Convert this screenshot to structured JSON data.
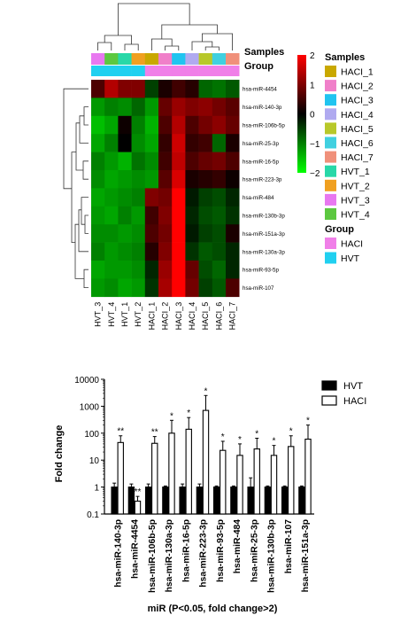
{
  "chart_data": [
    {
      "type": "heatmap",
      "row_labels": [
        "hsa-miR-4454",
        "hsa-miR-140-3p",
        "hsa-miR-106b-5p",
        "hsa-miR-25-3p",
        "hsa-miR-16-5p",
        "hsa-miR-223-3p",
        "hsa-miR-484",
        "hsa-miR-130b-3p",
        "hsa-miR-151a-3p",
        "hsa-miR-130a-3p",
        "hsa-miR-93-5p",
        "hsa-miR-107"
      ],
      "col_labels": [
        "HVT_3",
        "HVT_4",
        "HVT_1",
        "HVT_2",
        "HACI_1",
        "HACI_2",
        "HACI_3",
        "HACI_4",
        "HACI_5",
        "HACI_6",
        "HACI_7"
      ],
      "col_group": [
        "HVT",
        "HVT",
        "HVT",
        "HVT",
        "HACI",
        "HACI",
        "HACI",
        "HACI",
        "HACI",
        "HACI",
        "HACI"
      ],
      "values": [
        [
          0.6,
          1.4,
          1.0,
          1.0,
          -0.5,
          0.2,
          0.5,
          0.3,
          -0.8,
          -0.9,
          -0.7
        ],
        [
          -1.2,
          -1.0,
          -1.1,
          -0.8,
          -1.2,
          0.8,
          1.2,
          1.0,
          1.1,
          0.9,
          0.7
        ],
        [
          -1.5,
          -1.3,
          0.1,
          -1.0,
          -1.4,
          0.6,
          1.4,
          0.6,
          0.9,
          1.1,
          0.8
        ],
        [
          -1.3,
          -1.0,
          0.0,
          -1.1,
          -1.3,
          0.4,
          1.6,
          0.4,
          0.5,
          -0.8,
          0.2
        ],
        [
          -1.0,
          -1.2,
          -1.4,
          -0.9,
          -1.1,
          0.5,
          1.5,
          0.6,
          0.8,
          0.9,
          0.6
        ],
        [
          -1.1,
          -1.3,
          -1.2,
          -1.1,
          -1.2,
          0.7,
          1.7,
          0.2,
          0.3,
          0.4,
          0.1
        ],
        [
          -1.3,
          -1.2,
          -1.1,
          -1.0,
          1.0,
          0.9,
          2.0,
          -0.2,
          -0.5,
          -0.6,
          -0.3
        ],
        [
          -1.2,
          -1.3,
          -1.0,
          -1.2,
          0.5,
          1.0,
          2.0,
          -0.3,
          -0.6,
          -0.7,
          -0.4
        ],
        [
          -1.1,
          -1.1,
          -1.2,
          -1.1,
          0.6,
          0.9,
          2.0,
          -0.2,
          -0.5,
          -0.6,
          0.2
        ],
        [
          -1.0,
          -1.2,
          -1.1,
          -1.0,
          0.3,
          1.0,
          2.0,
          -0.4,
          -0.7,
          -0.6,
          -0.3
        ],
        [
          -1.3,
          -1.2,
          -1.2,
          -1.1,
          -0.3,
          1.2,
          2.0,
          0.8,
          -0.6,
          -0.8,
          -0.3
        ],
        [
          -1.2,
          -1.1,
          -1.3,
          -1.2,
          -0.4,
          1.3,
          2.0,
          0.9,
          -0.5,
          -0.7,
          0.6
        ]
      ],
      "color_scale": {
        "min": -2,
        "max": 2,
        "ticks": [
          "2",
          "1",
          "0",
          "−1",
          "−2"
        ],
        "low_color": "#00ff00",
        "mid_color": "#000000",
        "high_color": "#ff0000"
      },
      "annotation_titles": {
        "samples": "Samples",
        "group": "Group"
      },
      "legend_samples": [
        {
          "label": "HACI_1",
          "color": "#c9a800"
        },
        {
          "label": "HACI_2",
          "color": "#f07fc9"
        },
        {
          "label": "HACI_3",
          "color": "#20c4f0"
        },
        {
          "label": "HACI_4",
          "color": "#b0aaf0"
        },
        {
          "label": "HACI_5",
          "color": "#b8c82a"
        },
        {
          "label": "HACI_6",
          "color": "#40d0e0"
        },
        {
          "label": "HACI_7",
          "color": "#f0907a"
        },
        {
          "label": "HVT_1",
          "color": "#28d8a8"
        },
        {
          "label": "HVT_2",
          "color": "#f0a020"
        },
        {
          "label": "HVT_3",
          "color": "#e878f0"
        },
        {
          "label": "HVT_4",
          "color": "#5cc840"
        }
      ],
      "legend_group": [
        {
          "label": "HACI",
          "color": "#f07fe8"
        },
        {
          "label": "HVT",
          "color": "#20d0f0"
        }
      ]
    },
    {
      "type": "bar",
      "categories": [
        "hsa-miR-140-3p",
        "hsa-miR-4454",
        "hsa-miR-106b-5p",
        "hsa-miR-130a-3p",
        "hsa-miR-16-5p",
        "hsa-miR-223-3p",
        "hsa-miR-93-5p",
        "hsa-miR-484",
        "hsa-miR-25-3p",
        "hsa-miR-130b-3p",
        "hsa-miR-107",
        "hsa-miR-151a-3p"
      ],
      "series": [
        {
          "name": "HVT",
          "color": "#000000",
          "values": [
            1,
            1,
            1,
            1,
            1,
            1,
            1,
            1,
            1,
            1,
            1,
            1
          ],
          "err_high": [
            1.4,
            1.3,
            1.3,
            1.1,
            1.3,
            1.3,
            1.1,
            1.1,
            2.2,
            1.1,
            1.1,
            1.1
          ]
        },
        {
          "name": "HACI",
          "color": "#ffffff",
          "values": [
            45,
            0.3,
            42,
            100,
            140,
            700,
            23,
            15,
            26,
            15,
            32,
            60
          ],
          "err_high": [
            80,
            0.45,
            75,
            300,
            380,
            2500,
            50,
            40,
            65,
            35,
            80,
            200
          ]
        }
      ],
      "significance": [
        "**",
        "**",
        "**",
        "*",
        "*",
        "*",
        "*",
        "*",
        "*",
        "*",
        "*",
        "*"
      ],
      "ylabel": "Fold change",
      "xlabel": "miR (P<0.05, fold change>2)",
      "yscale": "log",
      "ylim": [
        0.1,
        10000
      ],
      "yticks": [
        "0.1",
        "1",
        "10",
        "100",
        "1000",
        "10000"
      ]
    }
  ]
}
